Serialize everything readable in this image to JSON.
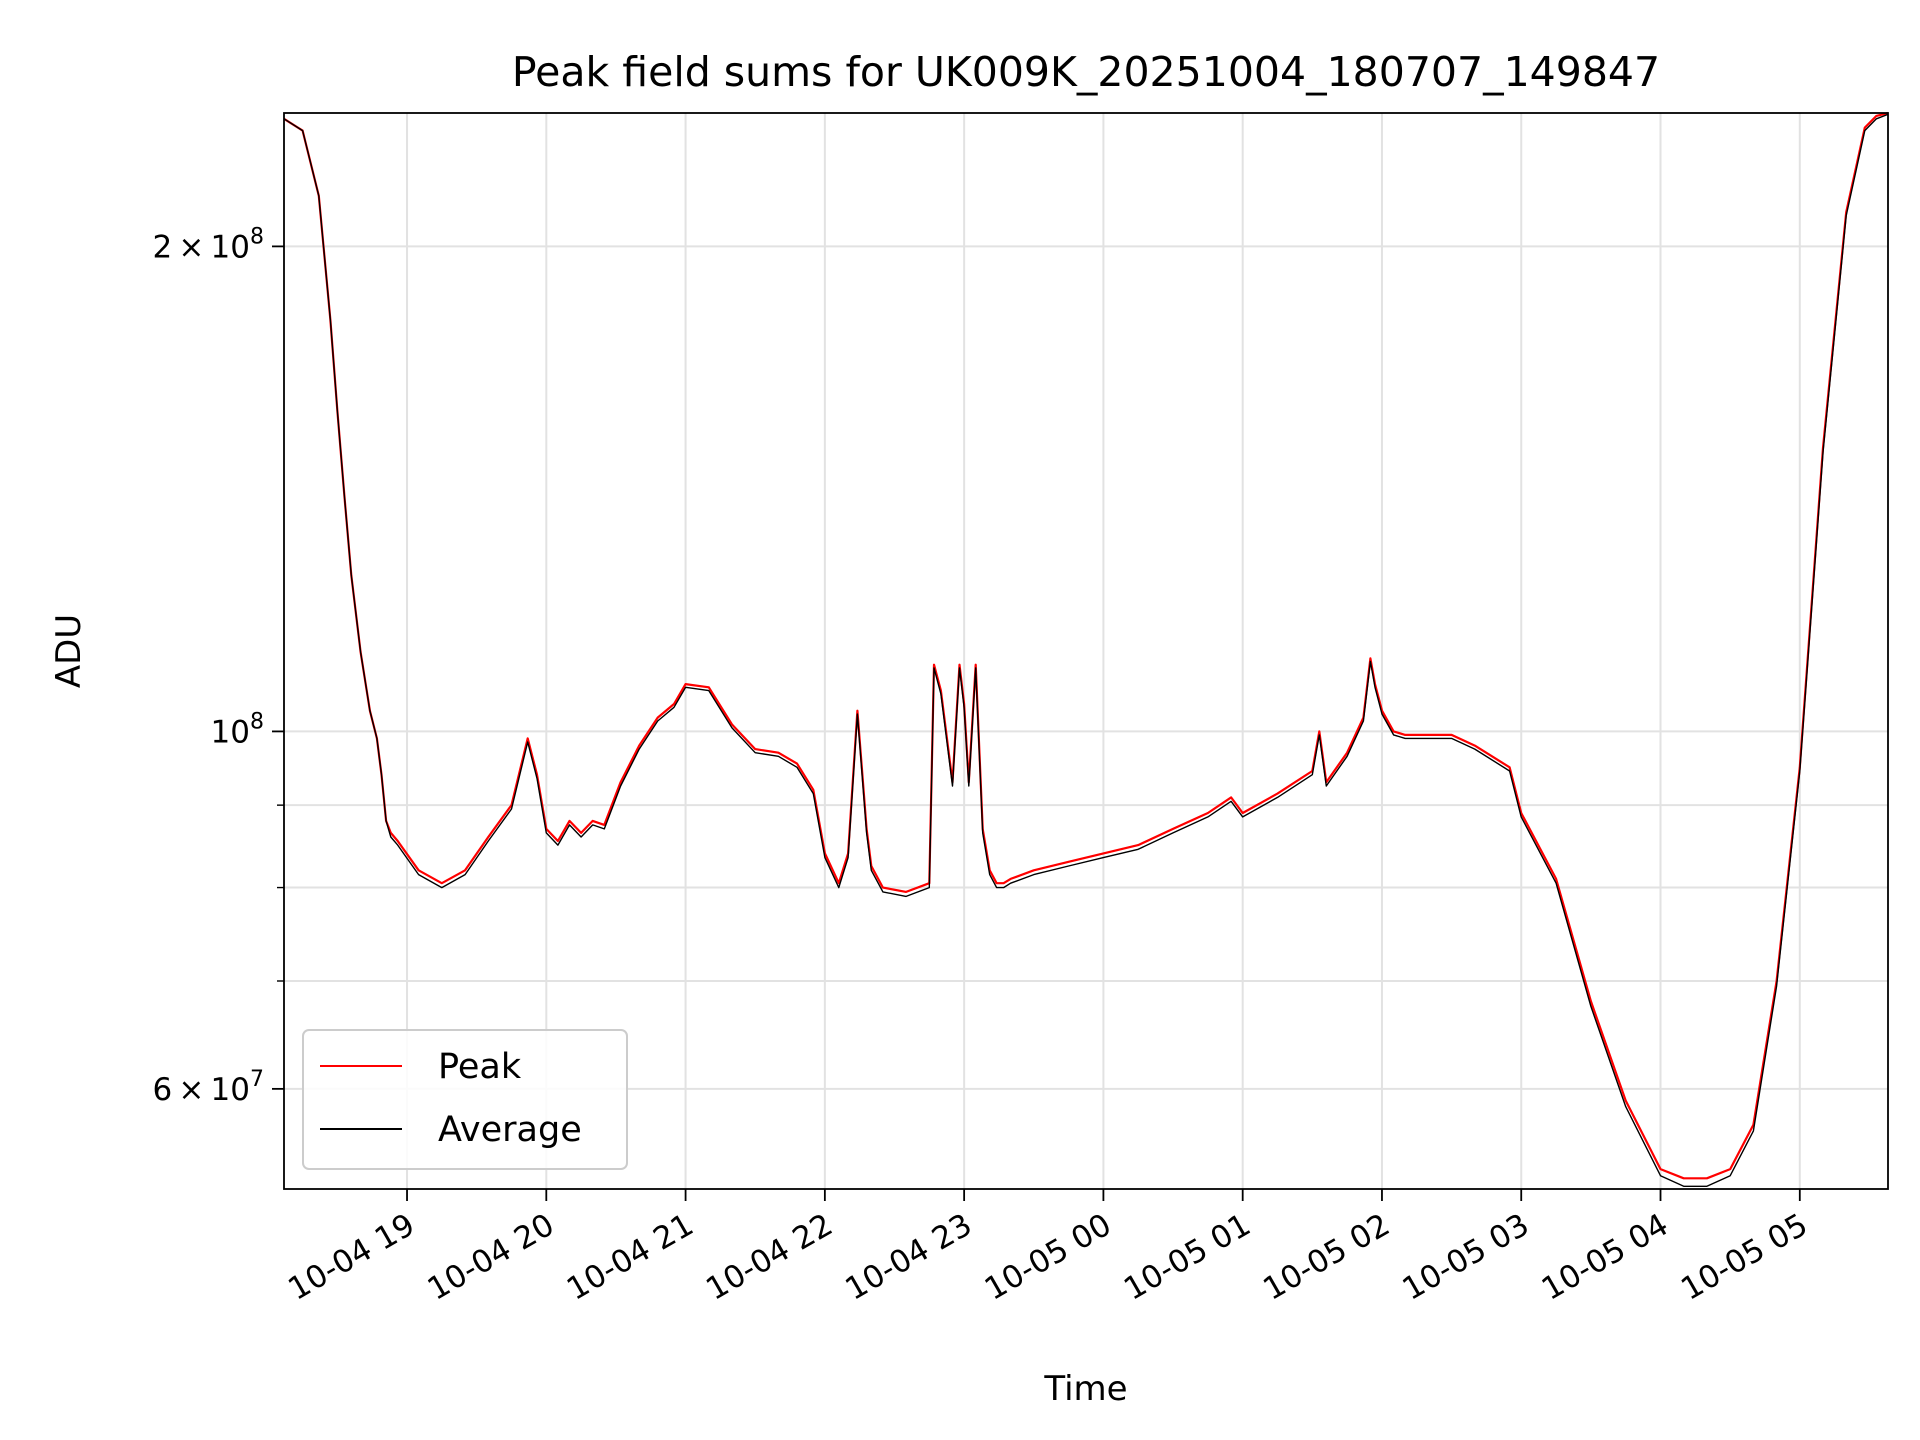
{
  "chart_data": {
    "type": "line",
    "title": "Peak field sums for UK009K_20251004_180707_149847",
    "xlabel": "Time",
    "ylabel": "ADU",
    "yscale": "log",
    "ylim": [
      52000000,
      242000000
    ],
    "xlim": [
      "2025-10-04 18:07",
      "2025-10-05 05:38"
    ],
    "grid": true,
    "legend_position": "lower-left",
    "x_ticks": [
      "10-04 19",
      "10-04 20",
      "10-04 21",
      "10-04 22",
      "10-04 23",
      "10-05 00",
      "10-05 01",
      "10-05 02",
      "10-05 03",
      "10-05 04",
      "10-05 05"
    ],
    "y_ticks": [
      {
        "value": 200000000,
        "mantissa": "2",
        "exponent": "8"
      },
      {
        "value": 100000000,
        "mantissa": "",
        "exponent": "8"
      },
      {
        "value": 60000000,
        "mantissa": "6",
        "exponent": "7"
      }
    ],
    "y_minor_ticks": [
      70000000,
      80000000,
      90000000
    ],
    "colors": {
      "peak": "#ff0000",
      "average": "#000000"
    },
    "x": [
      "2025-10-04 18:07",
      "2025-10-04 18:15",
      "2025-10-04 18:22",
      "2025-10-04 18:27",
      "2025-10-04 18:30",
      "2025-10-04 18:33",
      "2025-10-04 18:36",
      "2025-10-04 18:40",
      "2025-10-04 18:44",
      "2025-10-04 18:47",
      "2025-10-04 18:49",
      "2025-10-04 18:51",
      "2025-10-04 18:53",
      "2025-10-04 18:56",
      "2025-10-04 19:05",
      "2025-10-04 19:15",
      "2025-10-04 19:25",
      "2025-10-04 19:35",
      "2025-10-04 19:45",
      "2025-10-04 19:52",
      "2025-10-04 19:56",
      "2025-10-04 20:00",
      "2025-10-04 20:05",
      "2025-10-04 20:10",
      "2025-10-04 20:15",
      "2025-10-04 20:20",
      "2025-10-04 20:25",
      "2025-10-04 20:32",
      "2025-10-04 20:40",
      "2025-10-04 20:48",
      "2025-10-04 20:55",
      "2025-10-04 21:00",
      "2025-10-04 21:10",
      "2025-10-04 21:20",
      "2025-10-04 21:30",
      "2025-10-04 21:40",
      "2025-10-04 21:48",
      "2025-10-04 21:55",
      "2025-10-04 22:00",
      "2025-10-04 22:06",
      "2025-10-04 22:10",
      "2025-10-04 22:14",
      "2025-10-04 22:18",
      "2025-10-04 22:20",
      "2025-10-04 22:25",
      "2025-10-04 22:35",
      "2025-10-04 22:45",
      "2025-10-04 22:47",
      "2025-10-04 22:50",
      "2025-10-04 22:55",
      "2025-10-04 22:58",
      "2025-10-04 23:00",
      "2025-10-04 23:02",
      "2025-10-04 23:05",
      "2025-10-04 23:08",
      "2025-10-04 23:11",
      "2025-10-04 23:14",
      "2025-10-04 23:17",
      "2025-10-04 23:20",
      "2025-10-04 23:30",
      "2025-10-04 23:45",
      "2025-10-05 00:00",
      "2025-10-05 00:15",
      "2025-10-05 00:30",
      "2025-10-05 00:45",
      "2025-10-05 00:55",
      "2025-10-05 01:00",
      "2025-10-05 01:15",
      "2025-10-05 01:30",
      "2025-10-05 01:33",
      "2025-10-05 01:36",
      "2025-10-05 01:45",
      "2025-10-05 01:52",
      "2025-10-05 01:55",
      "2025-10-05 01:57",
      "2025-10-05 02:00",
      "2025-10-05 02:05",
      "2025-10-05 02:10",
      "2025-10-05 02:30",
      "2025-10-05 02:40",
      "2025-10-05 02:55",
      "2025-10-05 03:00",
      "2025-10-05 03:15",
      "2025-10-05 03:30",
      "2025-10-05 03:45",
      "2025-10-05 04:00",
      "2025-10-05 04:10",
      "2025-10-05 04:20",
      "2025-10-05 04:30",
      "2025-10-05 04:40",
      "2025-10-05 04:50",
      "2025-10-05 05:00",
      "2025-10-05 05:10",
      "2025-10-05 05:20",
      "2025-10-05 05:28",
      "2025-10-05 05:33",
      "2025-10-05 05:38"
    ],
    "series": [
      {
        "name": "Peak",
        "values": [
          240000000,
          236000000,
          215000000,
          180000000,
          158000000,
          140000000,
          125000000,
          112000000,
          103000000,
          99000000,
          94000000,
          88000000,
          86500000,
          85500000,
          82000000,
          80500000,
          82000000,
          86000000,
          90000000,
          99000000,
          94000000,
          87000000,
          85500000,
          88000000,
          86500000,
          88000000,
          87500000,
          93000000,
          98000000,
          102000000,
          104000000,
          107000000,
          106500000,
          101000000,
          97500000,
          97000000,
          95500000,
          92000000,
          84000000,
          80500000,
          84000000,
          103000000,
          87000000,
          82500000,
          80000000,
          79500000,
          80500000,
          110000000,
          106000000,
          93000000,
          110000000,
          104000000,
          93000000,
          110000000,
          87000000,
          82000000,
          80500000,
          80500000,
          81000000,
          82000000,
          83000000,
          84000000,
          85000000,
          87000000,
          89000000,
          91000000,
          89000000,
          91500000,
          94500000,
          100000000,
          93000000,
          97000000,
          102000000,
          111000000,
          107000000,
          103000000,
          100000000,
          99500000,
          99500000,
          98000000,
          95000000,
          89000000,
          81000000,
          68000000,
          59000000,
          53500000,
          52800000,
          52800000,
          53500000,
          57000000,
          70000000,
          95000000,
          150000000,
          210000000,
          237000000,
          241000000,
          242000000
        ]
      },
      {
        "name": "Average",
        "values": [
          240000000,
          236000000,
          215000000,
          180000000,
          158000000,
          140000000,
          125000000,
          112000000,
          103000000,
          99000000,
          94000000,
          88000000,
          86000000,
          85000000,
          81500000,
          80000000,
          81500000,
          85500000,
          89500000,
          98500000,
          93500000,
          86500000,
          85000000,
          87500000,
          86000000,
          87500000,
          87000000,
          92500000,
          97500000,
          101500000,
          103500000,
          106500000,
          106000000,
          100500000,
          97000000,
          96500000,
          95000000,
          91500000,
          83500000,
          80000000,
          83500000,
          102500000,
          86500000,
          82000000,
          79500000,
          79000000,
          80000000,
          109500000,
          105500000,
          92500000,
          109500000,
          103500000,
          92500000,
          109500000,
          86500000,
          81500000,
          80000000,
          80000000,
          80500000,
          81500000,
          82500000,
          83500000,
          84500000,
          86500000,
          88500000,
          90500000,
          88500000,
          91000000,
          94000000,
          99500000,
          92500000,
          96500000,
          101500000,
          110500000,
          106500000,
          102500000,
          99500000,
          99000000,
          99000000,
          97500000,
          94500000,
          88500000,
          80500000,
          67500000,
          58500000,
          53000000,
          52200000,
          52200000,
          53000000,
          56500000,
          69500000,
          94500000,
          149000000,
          209000000,
          236000000,
          240000000,
          241500000
        ]
      }
    ]
  },
  "legend": {
    "peak_label": "Peak",
    "average_label": "Average"
  }
}
